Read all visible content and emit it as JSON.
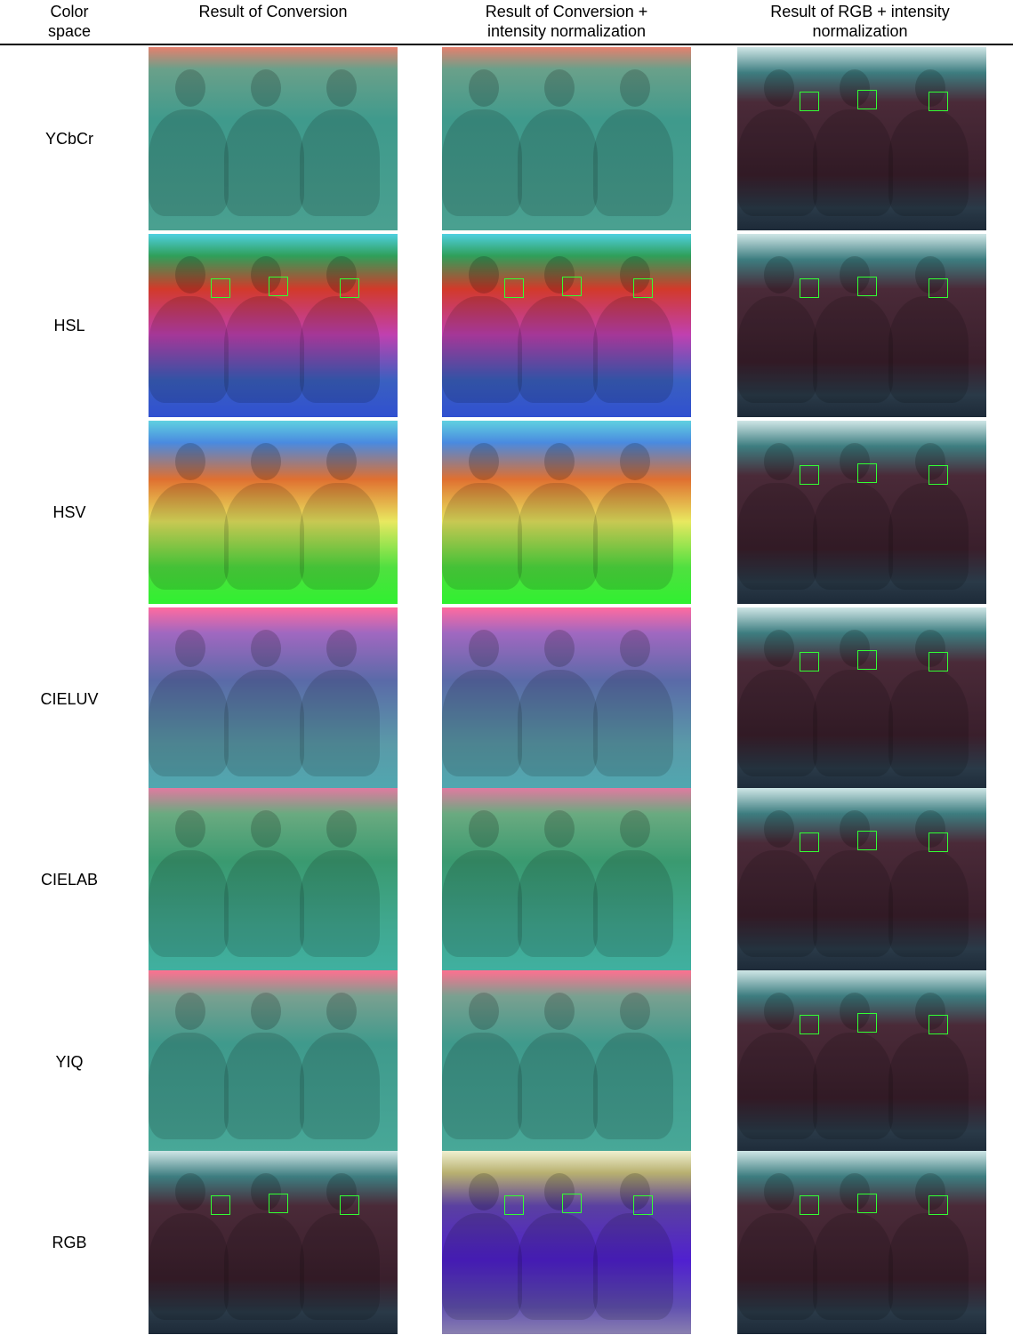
{
  "header": {
    "columns": [
      "Color space",
      "Result of Conversion",
      "Result of Conversion + intensity normalization",
      "Result of RGB + intensity normalization"
    ]
  },
  "rows": [
    "YCbCr",
    "HSL",
    "HSV",
    "CIELUV",
    "CIELAB",
    "YIQ",
    "RGB"
  ]
}
